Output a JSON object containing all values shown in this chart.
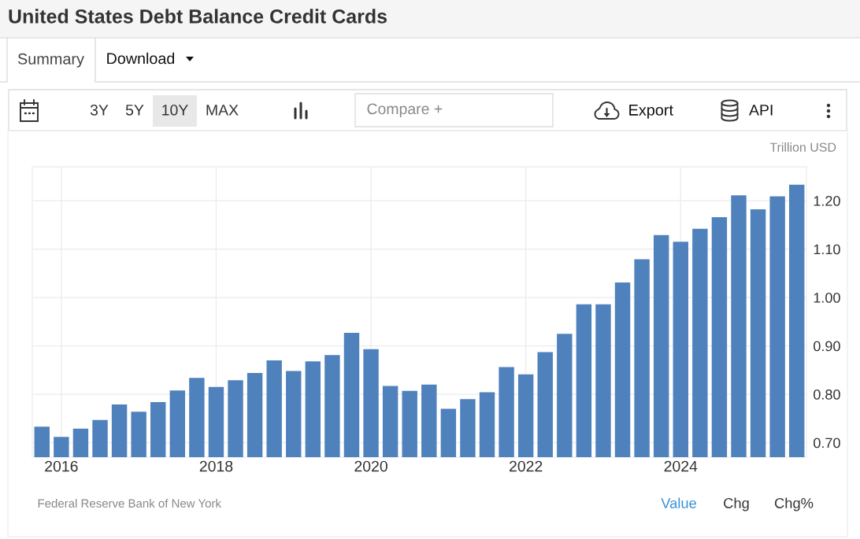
{
  "chart_data": {
    "type": "bar",
    "title": "United States Debt Balance Credit Cards",
    "ylabel": "Trillion USD",
    "categories": [
      null,
      "2016",
      null,
      null,
      null,
      null,
      null,
      null,
      null,
      "2018",
      null,
      null,
      null,
      null,
      null,
      null,
      null,
      "2020",
      null,
      null,
      null,
      null,
      null,
      null,
      null,
      "2022",
      null,
      null,
      null,
      null,
      null,
      null,
      null,
      "2024",
      null,
      null,
      null,
      null,
      null,
      null
    ],
    "values": [
      0.733,
      0.712,
      0.729,
      0.747,
      0.779,
      0.764,
      0.784,
      0.808,
      0.834,
      0.815,
      0.829,
      0.844,
      0.87,
      0.848,
      0.868,
      0.881,
      0.927,
      0.893,
      0.817,
      0.807,
      0.82,
      0.77,
      0.79,
      0.804,
      0.856,
      0.841,
      0.887,
      0.925,
      0.986,
      0.986,
      1.031,
      1.079,
      1.129,
      1.115,
      1.142,
      1.166,
      1.211,
      1.182,
      1.209,
      1.233
    ],
    "color": "#4f81bd",
    "ylim": [
      0.67,
      1.27
    ],
    "yticks": [
      {
        "value": 0.7,
        "label": "0.70"
      },
      {
        "value": 0.8,
        "label": "0.80"
      },
      {
        "value": 0.9,
        "label": "0.90"
      },
      {
        "value": 1.0,
        "label": "1.00"
      },
      {
        "value": 1.1,
        "label": "1.10"
      },
      {
        "value": 1.2,
        "label": "1.20"
      }
    ],
    "grid": true,
    "annotations": [
      "Federal Reserve Bank of New York",
      "Summary",
      "Download",
      "3Y",
      "5Y",
      "10Y",
      "MAX",
      "Compare +",
      "Export",
      "API",
      "Value",
      "Chg",
      "Chg%"
    ]
  }
}
